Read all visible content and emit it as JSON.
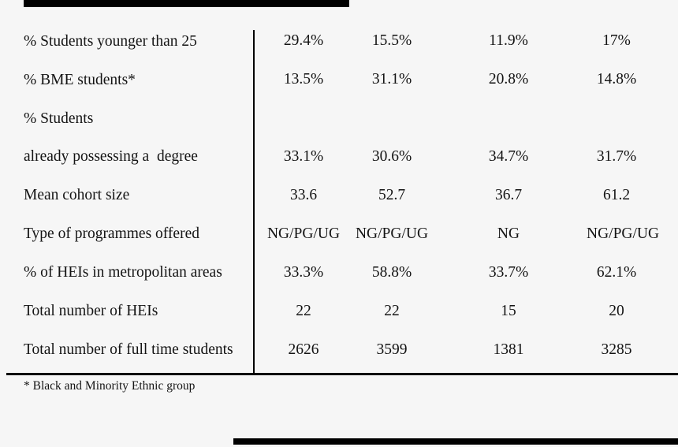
{
  "colors": {
    "background": "#f6f6f6",
    "text": "#141414",
    "rule": "#000000",
    "artifact_bar": "#000000"
  },
  "table": {
    "rows": [
      {
        "label": "% Students younger than 25",
        "values": [
          "29.4%",
          "15.5%",
          "11.9%",
          "17%"
        ]
      },
      {
        "label": "% BME students*",
        "values": [
          "13.5%",
          "31.1%",
          "20.8%",
          "14.8%"
        ]
      },
      {
        "label": "% Students",
        "values": [
          "",
          "",
          "",
          ""
        ]
      },
      {
        "label": "already possessing a  degree",
        "values": [
          "33.1%",
          "30.6%",
          "34.7%",
          "31.7%"
        ]
      },
      {
        "label": "Mean cohort size",
        "values": [
          "33.6",
          "52.7",
          "36.7",
          "61.2"
        ]
      },
      {
        "label": "Type of programmes offered",
        "values": [
          "NG/PG/UG",
          "NG/PG/UG",
          "NG",
          "NG/PG/UG"
        ]
      },
      {
        "label": "% of HEIs in metropolitan areas",
        "values": [
          "33.3%",
          "58.8%",
          "33.7%",
          "62.1%"
        ]
      },
      {
        "label": "Total number of HEIs",
        "values": [
          "22",
          "22",
          "15",
          "20"
        ]
      },
      {
        "label": "Total number of full time students",
        "values": [
          "2626",
          "3599",
          "1381",
          "3285"
        ]
      }
    ],
    "footnote": "* Black and Minority Ethnic group"
  }
}
